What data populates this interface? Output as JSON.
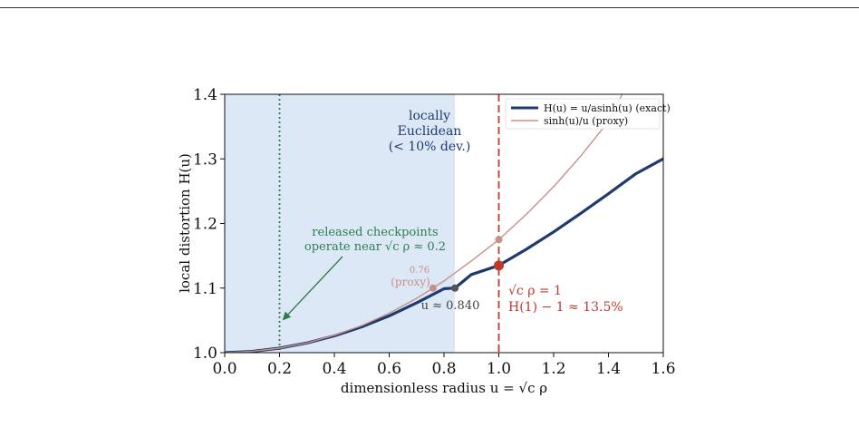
{
  "chart_data": {
    "type": "line",
    "xlabel": "dimensionless radius u = √c ρ",
    "ylabel": "local distortion H(u)",
    "xlim": [
      0.0,
      1.6
    ],
    "ylim": [
      1.0,
      1.4
    ],
    "x_ticks": [
      "0.0",
      "0.2",
      "0.4",
      "0.6",
      "0.8",
      "1.0",
      "1.2",
      "1.4",
      "1.6"
    ],
    "y_ticks": [
      "1.0",
      "1.1",
      "1.2",
      "1.3",
      "1.4"
    ],
    "grid": false,
    "legend": "top-right",
    "series": [
      {
        "name": "H(u) = u/asinh(u) (exact)",
        "color": "#1f3a6e",
        "x": [
          0.0,
          0.1,
          0.2,
          0.3,
          0.4,
          0.5,
          0.6,
          0.7,
          0.8,
          0.84,
          0.9,
          1.0,
          1.1,
          1.2,
          1.3,
          1.4,
          1.5,
          1.6
        ],
        "y": [
          1.0,
          1.002,
          1.007,
          1.015,
          1.026,
          1.04,
          1.057,
          1.077,
          1.099,
          1.1,
          1.121,
          1.135,
          1.16,
          1.187,
          1.216,
          1.246,
          1.277,
          1.3
        ]
      },
      {
        "name": "sinh(u)/u (proxy)",
        "color": "#c9908a",
        "x": [
          0.0,
          0.1,
          0.2,
          0.3,
          0.4,
          0.5,
          0.6,
          0.7,
          0.76,
          0.8,
          0.9,
          1.0,
          1.1,
          1.2,
          1.3,
          1.4,
          1.45
        ],
        "y": [
          1.0,
          1.002,
          1.007,
          1.015,
          1.027,
          1.042,
          1.061,
          1.084,
          1.1,
          1.111,
          1.142,
          1.175,
          1.214,
          1.257,
          1.305,
          1.358,
          1.4
        ]
      }
    ],
    "shaded_region": {
      "x_from": 0.0,
      "x_to": 0.84,
      "label_lines": [
        "locally",
        "Euclidean",
        "(< 10% dev.)"
      ]
    },
    "vertical_lines": [
      {
        "x": 0.2,
        "style": "dotted",
        "color": "#2e7d4f"
      },
      {
        "x": 1.0,
        "style": "dashed",
        "color": "#c0392b"
      }
    ],
    "markers": [
      {
        "x": 0.84,
        "y": 1.1,
        "color": "#555555"
      },
      {
        "x": 0.76,
        "y": 1.1,
        "color": "#c9908a"
      },
      {
        "x": 1.0,
        "y": 1.135,
        "color": "#c0392b"
      },
      {
        "x": 1.0,
        "y": 1.175,
        "color": "#c9908a"
      }
    ],
    "annotations": {
      "checkpoint_line1": "released checkpoints",
      "checkpoint_line2": "operate near √c ρ ≈ 0.2",
      "exact_point": "u ≈ 0.840",
      "proxy_value": "0.76",
      "proxy_label": "(proxy)",
      "unit_radius": "√c ρ = 1",
      "unit_error": "H(1) − 1 ≈ 13.5%"
    }
  }
}
